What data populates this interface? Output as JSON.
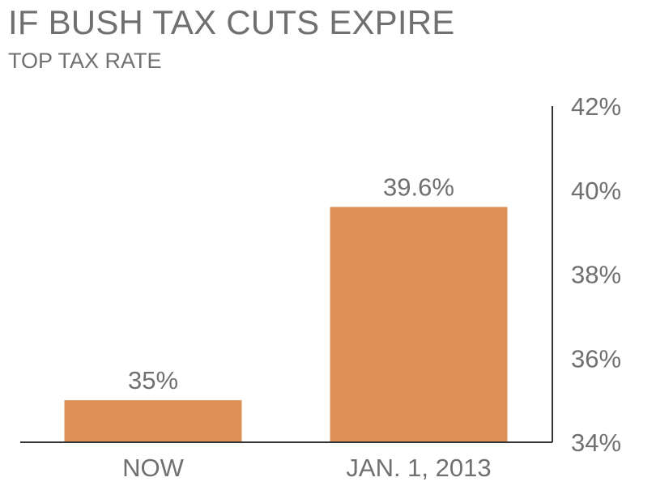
{
  "chart_data": {
    "type": "bar",
    "title": "IF BUSH TAX CUTS EXPIRE",
    "subtitle": "TOP TAX RATE",
    "categories": [
      "NOW",
      "JAN. 1, 2013"
    ],
    "values": [
      35,
      39.6
    ],
    "data_labels": [
      "35%",
      "39.6%"
    ],
    "ylim": [
      34,
      42
    ],
    "yticks": [
      34,
      36,
      38,
      40,
      42
    ],
    "ytick_labels": [
      "34%",
      "36%",
      "38%",
      "40%",
      "42%"
    ],
    "y_axis_position": "right",
    "grid": false,
    "bar_color": "#DD9055",
    "axis_color": "#333333",
    "text_color": "#707070"
  }
}
